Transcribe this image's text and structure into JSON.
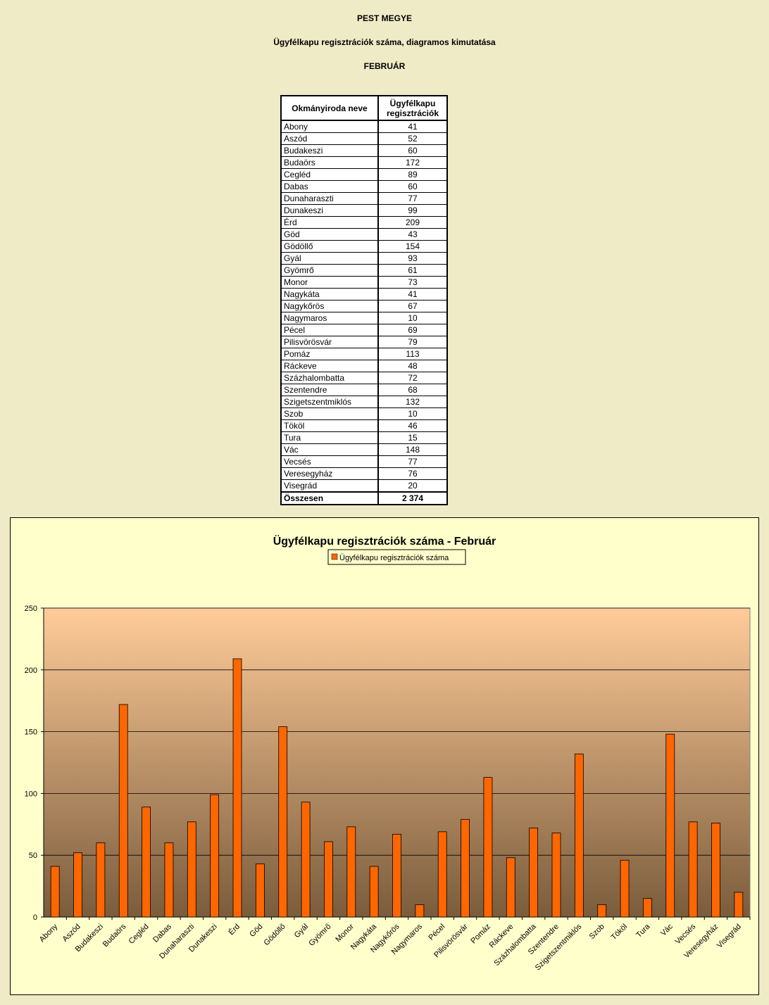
{
  "header": {
    "title": "PEST MEGYE",
    "subtitle": "Ügyfélkapu regisztrációk száma, diagramos kimutatása",
    "month": "FEBRUÁR"
  },
  "table": {
    "col1": "Okmányiroda neve",
    "col2_line1": "Ügyfélkapu",
    "col2_line2": "regisztrációk",
    "rows": [
      {
        "name": "Abony",
        "value": "41"
      },
      {
        "name": "Aszód",
        "value": "52"
      },
      {
        "name": "Budakeszi",
        "value": "60"
      },
      {
        "name": "Budaörs",
        "value": "172"
      },
      {
        "name": "Cegléd",
        "value": "89"
      },
      {
        "name": "Dabas",
        "value": "60"
      },
      {
        "name": "Dunaharaszti",
        "value": "77"
      },
      {
        "name": "Dunakeszi",
        "value": "99"
      },
      {
        "name": "Érd",
        "value": "209"
      },
      {
        "name": "Göd",
        "value": "43"
      },
      {
        "name": "Gödöllő",
        "value": "154"
      },
      {
        "name": "Gyál",
        "value": "93"
      },
      {
        "name": "Gyömrő",
        "value": "61"
      },
      {
        "name": "Monor",
        "value": "73"
      },
      {
        "name": "Nagykáta",
        "value": "41"
      },
      {
        "name": "Nagykőrös",
        "value": "67"
      },
      {
        "name": "Nagymaros",
        "value": "10"
      },
      {
        "name": "Pécel",
        "value": "69"
      },
      {
        "name": "Pilisvörösvár",
        "value": "79"
      },
      {
        "name": "Pomáz",
        "value": "113"
      },
      {
        "name": "Ráckeve",
        "value": "48"
      },
      {
        "name": "Százhalombatta",
        "value": "72"
      },
      {
        "name": "Szentendre",
        "value": "68"
      },
      {
        "name": "Szigetszentmiklós",
        "value": "132"
      },
      {
        "name": "Szob",
        "value": "10"
      },
      {
        "name": "Tököl",
        "value": "46"
      },
      {
        "name": "Tura",
        "value": "15"
      },
      {
        "name": "Vác",
        "value": "148"
      },
      {
        "name": "Vecsés",
        "value": "77"
      },
      {
        "name": "Veresegyház",
        "value": "76"
      },
      {
        "name": "Visegrád",
        "value": "20"
      }
    ],
    "total_label": "Összesen",
    "total_value": "2 374"
  },
  "chart_data": {
    "type": "bar",
    "title": "Ügyfélkapu regisztrációk száma - Február",
    "legend_position": "top",
    "grid": true,
    "ylim": [
      0,
      250
    ],
    "yticks": [
      0,
      50,
      100,
      150,
      200,
      250
    ],
    "categories": [
      "Abony",
      "Aszód",
      "Budakeszi",
      "Budaörs",
      "Cegléd",
      "Dabas",
      "Dunaharaszti",
      "Dunakeszi",
      "Érd",
      "Göd",
      "Gödöllő",
      "Gyál",
      "Gyömrő",
      "Monor",
      "Nagykáta",
      "Nagykőrös",
      "Nagymaros",
      "Pécel",
      "Pilisvörösvár",
      "Pomáz",
      "Ráckeve",
      "Százhalombatta",
      "Szentendre",
      "Szigetszentmiklós",
      "Szob",
      "Tököl",
      "Tura",
      "Vác",
      "Vecsés",
      "Veresegyház",
      "Visegrád"
    ],
    "series": [
      {
        "name": "Ügyfélkapu regisztrációk száma",
        "color": "#ff6600",
        "values": [
          41,
          52,
          60,
          172,
          89,
          60,
          77,
          99,
          209,
          43,
          154,
          93,
          61,
          73,
          41,
          67,
          10,
          69,
          79,
          113,
          48,
          72,
          68,
          132,
          10,
          46,
          15,
          148,
          77,
          76,
          20
        ]
      }
    ],
    "background_top": "#ffcc99",
    "background_bottom": "#7a5c3c"
  }
}
